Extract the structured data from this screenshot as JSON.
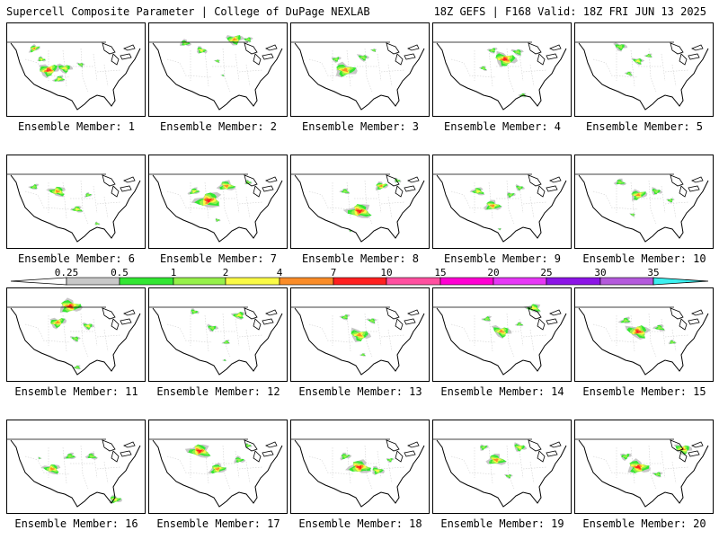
{
  "header": {
    "title": "Supercell Composite Parameter | College of DuPage NEXLAB",
    "run_info": "18Z GEFS | F168 Valid: 18Z FRI JUN 13 2025"
  },
  "colors": {
    "scale": [
      "#c8c8c8",
      "#32e632",
      "#96f04a",
      "#fafa46",
      "#fa8c28",
      "#ff2020",
      "#ff50a0",
      "#ff00d2",
      "#e637f5",
      "#8c14e6",
      "#b45adc",
      "#3cf0f0"
    ]
  },
  "colorbar": {
    "labels": [
      "0.25",
      "0.5",
      "1",
      "2",
      "4",
      "7",
      "10",
      "15",
      "20",
      "25",
      "30",
      "35"
    ]
  },
  "panels": [
    {
      "label": "Ensemble Member: 1",
      "blobs": [
        [
          30,
          28,
          3,
          2,
          6,
          -0.5
        ],
        [
          38,
          40,
          3,
          1,
          4.5,
          0.3
        ],
        [
          46,
          52,
          4,
          2,
          11,
          -0.2
        ],
        [
          64,
          50,
          3,
          1,
          8,
          0.2
        ],
        [
          82,
          46,
          2,
          1,
          4,
          0.4
        ],
        [
          58,
          62,
          3,
          1,
          6,
          -0.3
        ]
      ]
    },
    {
      "label": "Ensemble Member: 2",
      "blobs": [
        [
          40,
          22,
          2,
          1,
          6,
          0.2
        ],
        [
          58,
          30,
          3,
          1,
          6,
          0.4
        ],
        [
          95,
          18,
          3,
          2,
          9,
          -0.1
        ],
        [
          110,
          18,
          2,
          1,
          5,
          0
        ],
        [
          76,
          42,
          2,
          1,
          3,
          0.3
        ],
        [
          82,
          58,
          1,
          1,
          2,
          0.5
        ]
      ]
    },
    {
      "label": "Ensemble Member: 3",
      "blobs": [
        [
          60,
          52,
          3,
          2,
          12,
          0.1
        ],
        [
          50,
          40,
          2,
          1,
          5,
          -0.3
        ],
        [
          80,
          38,
          2,
          1,
          6,
          0.3
        ],
        [
          92,
          30,
          2,
          1,
          3,
          0.2
        ]
      ]
    },
    {
      "label": "Ensemble Member: 4",
      "blobs": [
        [
          80,
          40,
          4,
          2,
          12,
          0.2
        ],
        [
          66,
          30,
          2,
          1,
          5,
          -0.3
        ],
        [
          94,
          32,
          2,
          1,
          6,
          0.3
        ],
        [
          100,
          80,
          2,
          1,
          4,
          0.1
        ],
        [
          56,
          50,
          2,
          1,
          4,
          0.6
        ]
      ]
    },
    {
      "label": "Ensemble Member: 5",
      "blobs": [
        [
          50,
          26,
          2,
          1,
          7,
          0.2
        ],
        [
          70,
          42,
          3,
          1,
          6,
          0.3
        ],
        [
          82,
          36,
          2,
          1,
          4,
          0
        ],
        [
          60,
          56,
          2,
          1,
          4,
          0.5
        ]
      ]
    },
    {
      "label": "Ensemble Member: 6",
      "blobs": [
        [
          30,
          35,
          2,
          1,
          5,
          -0.4
        ],
        [
          56,
          40,
          3,
          2,
          9,
          0.2
        ],
        [
          78,
          60,
          3,
          1,
          6,
          0.2
        ],
        [
          90,
          44,
          2,
          1,
          4,
          -0.2
        ],
        [
          100,
          76,
          2,
          1,
          3,
          0.3
        ]
      ]
    },
    {
      "label": "Ensemble Member: 7",
      "blobs": [
        [
          66,
          50,
          4,
          3,
          14,
          -0.2
        ],
        [
          50,
          40,
          3,
          1,
          6,
          -0.4
        ],
        [
          86,
          34,
          3,
          2,
          9,
          0.1
        ],
        [
          110,
          30,
          2,
          1,
          4,
          0.2
        ],
        [
          76,
          72,
          2,
          1,
          3,
          0.3
        ]
      ]
    },
    {
      "label": "Ensemble Member: 8",
      "blobs": [
        [
          76,
          62,
          4,
          3,
          13,
          0.1
        ],
        [
          60,
          40,
          2,
          1,
          5,
          0.3
        ],
        [
          100,
          34,
          3,
          2,
          7,
          -0.2
        ],
        [
          118,
          28,
          2,
          1,
          4,
          0.4
        ],
        [
          66,
          84,
          1,
          1,
          2,
          0
        ]
      ]
    },
    {
      "label": "Ensemble Member: 9",
      "blobs": [
        [
          50,
          40,
          3,
          1,
          7,
          0.3
        ],
        [
          66,
          56,
          3,
          2,
          9,
          0.1
        ],
        [
          86,
          44,
          2,
          1,
          5,
          -0.2
        ],
        [
          96,
          36,
          2,
          1,
          5,
          0.3
        ],
        [
          74,
          82,
          1,
          1,
          2,
          0.1
        ]
      ]
    },
    {
      "label": "Ensemble Member: 10",
      "blobs": [
        [
          50,
          30,
          2,
          1,
          6,
          0.2
        ],
        [
          70,
          44,
          3,
          2,
          9,
          -0.2
        ],
        [
          90,
          40,
          2,
          1,
          6,
          0.3
        ],
        [
          106,
          50,
          2,
          1,
          4,
          -0.1
        ],
        [
          64,
          66,
          2,
          1,
          3,
          0.4
        ]
      ]
    },
    {
      "label": "Ensemble Member: 11",
      "blobs": [
        [
          70,
          20,
          4,
          3,
          12,
          0.1
        ],
        [
          56,
          38,
          3,
          2,
          9,
          -0.3
        ],
        [
          90,
          42,
          3,
          1,
          6,
          0.2
        ],
        [
          76,
          56,
          2,
          1,
          5,
          0.3
        ],
        [
          78,
          88,
          2,
          1,
          4,
          0
        ]
      ]
    },
    {
      "label": "Ensemble Member: 12",
      "blobs": [
        [
          50,
          26,
          2,
          1,
          5,
          0.3
        ],
        [
          70,
          44,
          2,
          1,
          6,
          0.2
        ],
        [
          100,
          30,
          3,
          1,
          7,
          -0.1
        ],
        [
          86,
          60,
          2,
          1,
          4,
          -0.3
        ],
        [
          84,
          80,
          1,
          1,
          2,
          0.2
        ]
      ]
    },
    {
      "label": "Ensemble Member: 13",
      "blobs": [
        [
          76,
          52,
          3,
          2,
          11,
          0.2
        ],
        [
          60,
          32,
          2,
          1,
          5,
          -0.3
        ],
        [
          90,
          36,
          2,
          1,
          5,
          0.3
        ],
        [
          80,
          74,
          2,
          1,
          3,
          0.1
        ]
      ]
    },
    {
      "label": "Ensemble Member: 14",
      "blobs": [
        [
          76,
          48,
          3,
          2,
          10,
          0.3
        ],
        [
          60,
          34,
          2,
          1,
          5,
          -0.3
        ],
        [
          112,
          22,
          3,
          1,
          8,
          0.2
        ],
        [
          96,
          40,
          2,
          1,
          4,
          0.1
        ]
      ]
    },
    {
      "label": "Ensemble Member: 15",
      "blobs": [
        [
          70,
          48,
          4,
          2,
          12,
          0.2
        ],
        [
          56,
          36,
          2,
          1,
          6,
          -0.3
        ],
        [
          94,
          44,
          2,
          1,
          6,
          0.3
        ],
        [
          108,
          60,
          2,
          1,
          4,
          0.1
        ]
      ]
    },
    {
      "label": "Ensemble Member: 16",
      "blobs": [
        [
          50,
          54,
          3,
          2,
          9,
          0.2
        ],
        [
          70,
          40,
          2,
          1,
          6,
          -0.2
        ],
        [
          94,
          40,
          2,
          1,
          6,
          0.3
        ],
        [
          120,
          88,
          3,
          1,
          7,
          0.1
        ],
        [
          36,
          42,
          1,
          1,
          2,
          0.4
        ]
      ]
    },
    {
      "label": "Ensemble Member: 17",
      "blobs": [
        [
          56,
          34,
          4,
          2,
          12,
          0.2
        ],
        [
          76,
          54,
          3,
          2,
          9,
          -0.2
        ],
        [
          100,
          44,
          2,
          1,
          6,
          0.1
        ],
        [
          110,
          28,
          2,
          1,
          4,
          0.3
        ]
      ]
    },
    {
      "label": "Ensemble Member: 18",
      "blobs": [
        [
          76,
          52,
          4,
          3,
          12,
          0.1
        ],
        [
          60,
          40,
          2,
          1,
          6,
          -0.2
        ],
        [
          96,
          56,
          3,
          1,
          7,
          0.2
        ],
        [
          110,
          44,
          2,
          1,
          4,
          -0.2
        ]
      ]
    },
    {
      "label": "Ensemble Member: 19",
      "blobs": [
        [
          70,
          44,
          3,
          2,
          10,
          0.2
        ],
        [
          56,
          30,
          2,
          1,
          5,
          -0.3
        ],
        [
          96,
          30,
          3,
          1,
          7,
          0.3
        ],
        [
          84,
          62,
          2,
          1,
          4,
          0.1
        ]
      ]
    },
    {
      "label": "Ensemble Member: 20",
      "blobs": [
        [
          70,
          52,
          4,
          3,
          12,
          0.2
        ],
        [
          56,
          40,
          2,
          1,
          6,
          -0.3
        ],
        [
          120,
          32,
          3,
          2,
          9,
          0.2
        ],
        [
          92,
          60,
          2,
          1,
          5,
          0.1
        ]
      ]
    }
  ]
}
